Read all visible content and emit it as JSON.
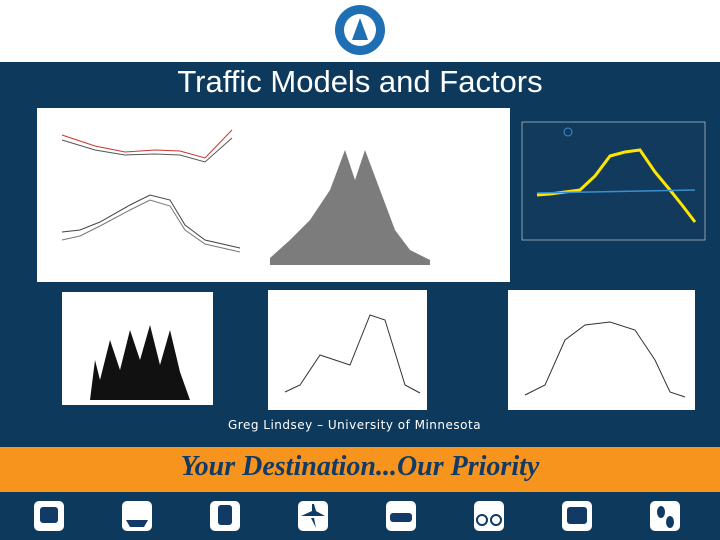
{
  "slide": {
    "title": "Traffic Models and Factors",
    "author": "Greg Lindsey – University of Minnesota",
    "tagline": "Your Destination...Our Priority"
  }
}
